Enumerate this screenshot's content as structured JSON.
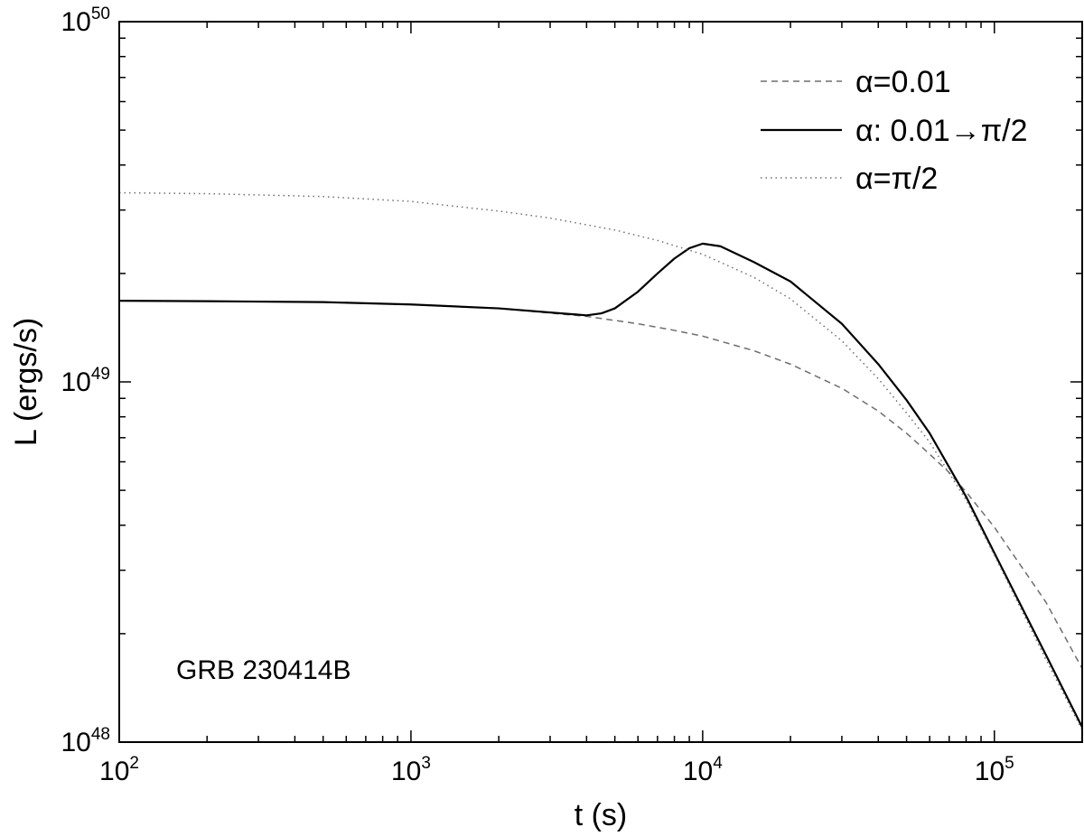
{
  "chart_data": {
    "type": "line",
    "title": "",
    "xlabel": "t (s)",
    "ylabel": "L (ergs/s)",
    "xscale": "log",
    "yscale": "log",
    "xlim": [
      100,
      200000
    ],
    "ylim": [
      1e+48,
      1e+50
    ],
    "grid": false,
    "legend_position": "top-right",
    "annotation": "GRB 230414B",
    "x_ticks": [
      {
        "base": "10",
        "exp": "2"
      },
      {
        "base": "10",
        "exp": "3"
      },
      {
        "base": "10",
        "exp": "4"
      },
      {
        "base": "10",
        "exp": "5"
      }
    ],
    "y_ticks": [
      {
        "base": "10",
        "exp": "48"
      },
      {
        "base": "10",
        "exp": "49"
      },
      {
        "base": "10",
        "exp": "50"
      }
    ],
    "series": [
      {
        "name": "α=0.01",
        "style": "dashed",
        "color": "#6e6e6e",
        "x": [
          100,
          200,
          500,
          1000,
          2000,
          4000,
          6000,
          8000,
          10000,
          15000,
          20000,
          30000,
          40000,
          50000,
          60000,
          70000,
          80000,
          100000,
          150000,
          200000
        ],
        "y": [
          1.68e+49,
          1.675e+49,
          1.665e+49,
          1.64e+49,
          1.6e+49,
          1.52e+49,
          1.45e+49,
          1.39e+49,
          1.34e+49,
          1.22e+49,
          1.12e+49,
          9.6e+48,
          8.3e+48,
          7.2e+48,
          6.3e+48,
          5.6e+48,
          4.95e+48,
          3.95e+48,
          2.45e+48,
          1.6e+48
        ]
      },
      {
        "name": "α: 0.01→π/2",
        "style": "solid",
        "color": "#000000",
        "x": [
          100,
          200,
          500,
          1000,
          2000,
          4000,
          4500,
          5000,
          6000,
          7000,
          8000,
          9000,
          10000,
          11500,
          15000,
          20000,
          30000,
          40000,
          50000,
          60000,
          80000,
          100000,
          150000,
          200000
        ],
        "y": [
          1.68e+49,
          1.675e+49,
          1.665e+49,
          1.64e+49,
          1.6e+49,
          1.53e+49,
          1.55e+49,
          1.6e+49,
          1.78e+49,
          2e+49,
          2.2e+49,
          2.35e+49,
          2.42e+49,
          2.38e+49,
          2.15e+49,
          1.9e+49,
          1.45e+49,
          1.12e+49,
          8.9e+48,
          7.2e+48,
          4.8e+48,
          3.35e+48,
          1.75e+48,
          1.1e+48
        ]
      },
      {
        "name": "α=π/2",
        "style": "dotted",
        "color": "#6e6e6e",
        "x": [
          100,
          200,
          500,
          1000,
          2000,
          3000,
          5000,
          7000,
          10000,
          15000,
          20000,
          30000,
          40000,
          50000,
          60000,
          80000,
          100000,
          150000,
          200000
        ],
        "y": [
          3.35e+49,
          3.33e+49,
          3.27e+49,
          3.17e+49,
          2.98e+49,
          2.85e+49,
          2.64e+49,
          2.47e+49,
          2.26e+49,
          1.95e+49,
          1.7e+49,
          1.3e+49,
          1.02e+49,
          8.2e+48,
          6.8e+48,
          4.7e+48,
          3.3e+48,
          1.7e+48,
          1.08e+48
        ]
      }
    ]
  }
}
